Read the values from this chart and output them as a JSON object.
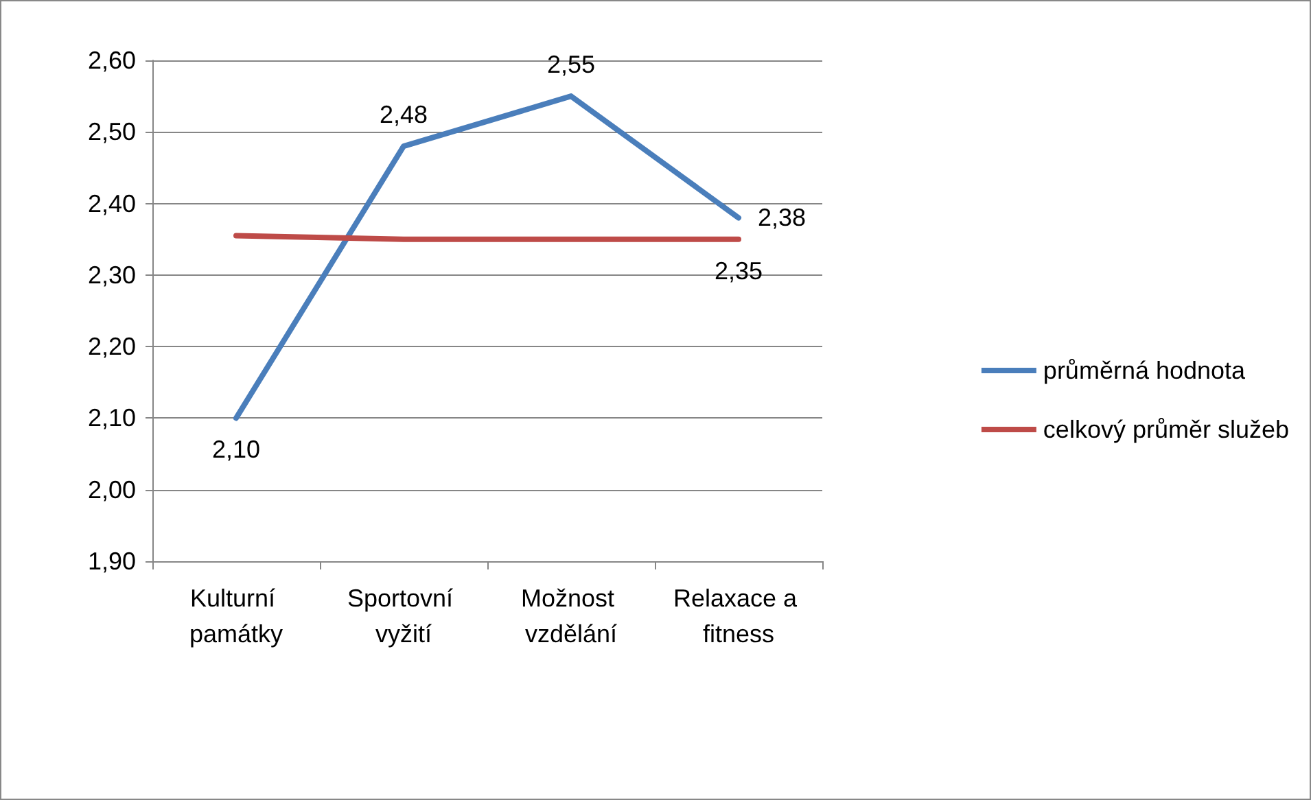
{
  "chart_data": {
    "type": "line",
    "categories": [
      "Kulturní památky",
      "Sportovní vyžití",
      "Možnost vzdělání",
      "Relaxace a fitness"
    ],
    "series": [
      {
        "name": "průměrná hodnota",
        "color": "#4a7ebb",
        "values": [
          2.1,
          2.48,
          2.55,
          2.38
        ],
        "value_labels": [
          "2,10",
          "2,48",
          "2,55",
          "2,38"
        ]
      },
      {
        "name": "celkový průměr služeb",
        "color": "#be4b48",
        "values": [
          2.355,
          2.35,
          2.35,
          2.35
        ],
        "value_labels": [
          null,
          null,
          null,
          "2,35"
        ]
      }
    ],
    "ylim": [
      1.9,
      2.6
    ],
    "yticks": [
      {
        "value": 1.9,
        "label": "1,90"
      },
      {
        "value": 2.0,
        "label": "2,00"
      },
      {
        "value": 2.1,
        "label": "2,10"
      },
      {
        "value": 2.2,
        "label": "2,20"
      },
      {
        "value": 2.3,
        "label": "2,30"
      },
      {
        "value": 2.4,
        "label": "2,40"
      },
      {
        "value": 2.5,
        "label": "2,50"
      },
      {
        "value": 2.6,
        "label": "2,60"
      }
    ],
    "grid": "y",
    "legend": "right",
    "marker": "none",
    "line_style": "solid"
  }
}
